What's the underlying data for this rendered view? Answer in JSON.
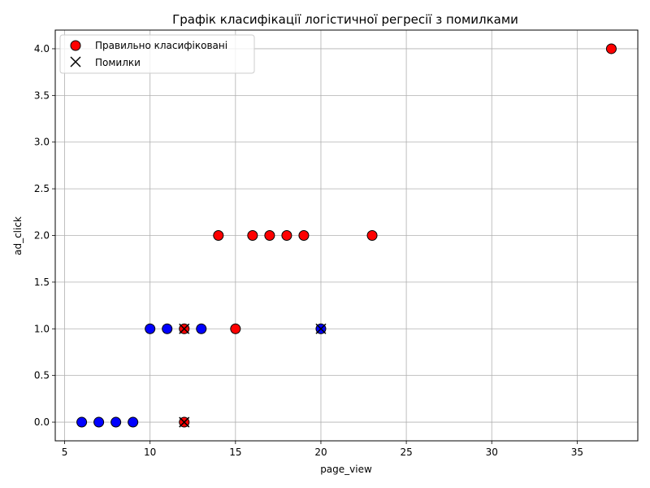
{
  "chart_data": {
    "type": "scatter",
    "title": "Графік класифікації логістичної регресії з помилками",
    "xlabel": "page_view",
    "ylabel": "ad_click",
    "xlim": [
      4.45,
      38.55
    ],
    "ylim": [
      -0.2,
      4.2
    ],
    "xticks": [
      5,
      10,
      15,
      20,
      25,
      30,
      35
    ],
    "xtick_labels": [
      "5",
      "10",
      "15",
      "20",
      "25",
      "30",
      "35"
    ],
    "yticks": [
      0,
      0.5,
      1,
      1.5,
      2,
      2.5,
      3,
      3.5,
      4
    ],
    "ytick_labels": [
      "0.0",
      "0.5",
      "1.0",
      "1.5",
      "2.0",
      "2.5",
      "3.0",
      "3.5",
      "4.0"
    ],
    "grid": true,
    "legend_position": "top-left",
    "colors": {
      "class_0": "#0000ff",
      "class_1": "#ff0000",
      "marker_edge": "#000000",
      "grid": "#b0b0b0"
    },
    "series": [
      {
        "name": "Правильно класифіковані",
        "marker": "circle",
        "legend_color": "#ff0000",
        "points": [
          {
            "x": 6,
            "y": 0,
            "class": 0
          },
          {
            "x": 7,
            "y": 0,
            "class": 0
          },
          {
            "x": 8,
            "y": 0,
            "class": 0
          },
          {
            "x": 9,
            "y": 0,
            "class": 0
          },
          {
            "x": 12,
            "y": 0,
            "class": 1
          },
          {
            "x": 10,
            "y": 1,
            "class": 0
          },
          {
            "x": 11,
            "y": 1,
            "class": 0
          },
          {
            "x": 12,
            "y": 1,
            "class": 1
          },
          {
            "x": 13,
            "y": 1,
            "class": 0
          },
          {
            "x": 15,
            "y": 1,
            "class": 1
          },
          {
            "x": 20,
            "y": 1,
            "class": 0
          },
          {
            "x": 14,
            "y": 2,
            "class": 1
          },
          {
            "x": 16,
            "y": 2,
            "class": 1
          },
          {
            "x": 17,
            "y": 2,
            "class": 1
          },
          {
            "x": 18,
            "y": 2,
            "class": 1
          },
          {
            "x": 19,
            "y": 2,
            "class": 1
          },
          {
            "x": 23,
            "y": 2,
            "class": 1
          },
          {
            "x": 37,
            "y": 4,
            "class": 1
          }
        ]
      },
      {
        "name": "Помилки",
        "marker": "x",
        "points": [
          {
            "x": 12,
            "y": 0
          },
          {
            "x": 12,
            "y": 1
          },
          {
            "x": 20,
            "y": 1
          }
        ]
      }
    ]
  }
}
